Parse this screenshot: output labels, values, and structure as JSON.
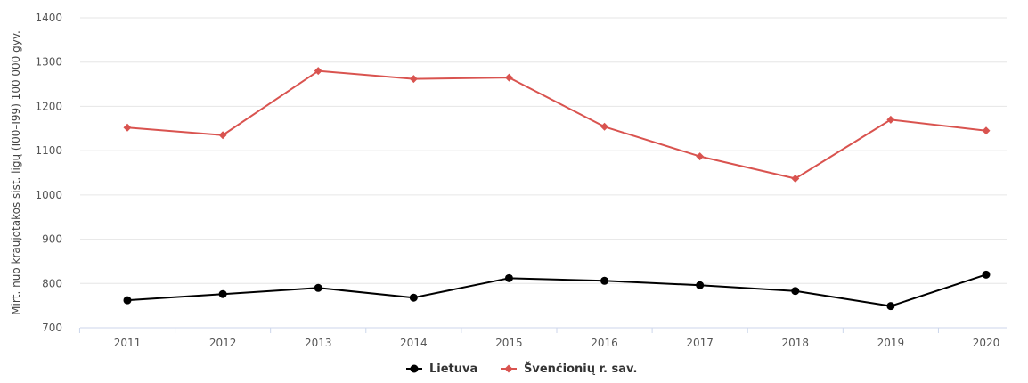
{
  "chart_data": {
    "type": "line",
    "title": "",
    "xlabel": "",
    "ylabel": "Mirt. nuo kraujotakos sist. ligų (I00–I99) 100 000 gyv.",
    "categories": [
      "2011",
      "2012",
      "2013",
      "2014",
      "2015",
      "2016",
      "2017",
      "2018",
      "2019",
      "2020"
    ],
    "ylim": [
      700,
      1400
    ],
    "yticks": [
      700,
      800,
      900,
      1000,
      1100,
      1200,
      1300,
      1400
    ],
    "grid": true,
    "legend_position": "bottom-center",
    "series": [
      {
        "name": "Lietuva",
        "color": "#000000",
        "marker": "circle",
        "values": [
          762,
          776,
          790,
          768,
          812,
          806,
          796,
          783,
          749,
          820
        ]
      },
      {
        "name": "Švenčionių r. sav.",
        "color": "#d9534f",
        "marker": "diamond",
        "values": [
          1152,
          1135,
          1280,
          1262,
          1265,
          1154,
          1087,
          1037,
          1170,
          1145
        ]
      }
    ]
  }
}
